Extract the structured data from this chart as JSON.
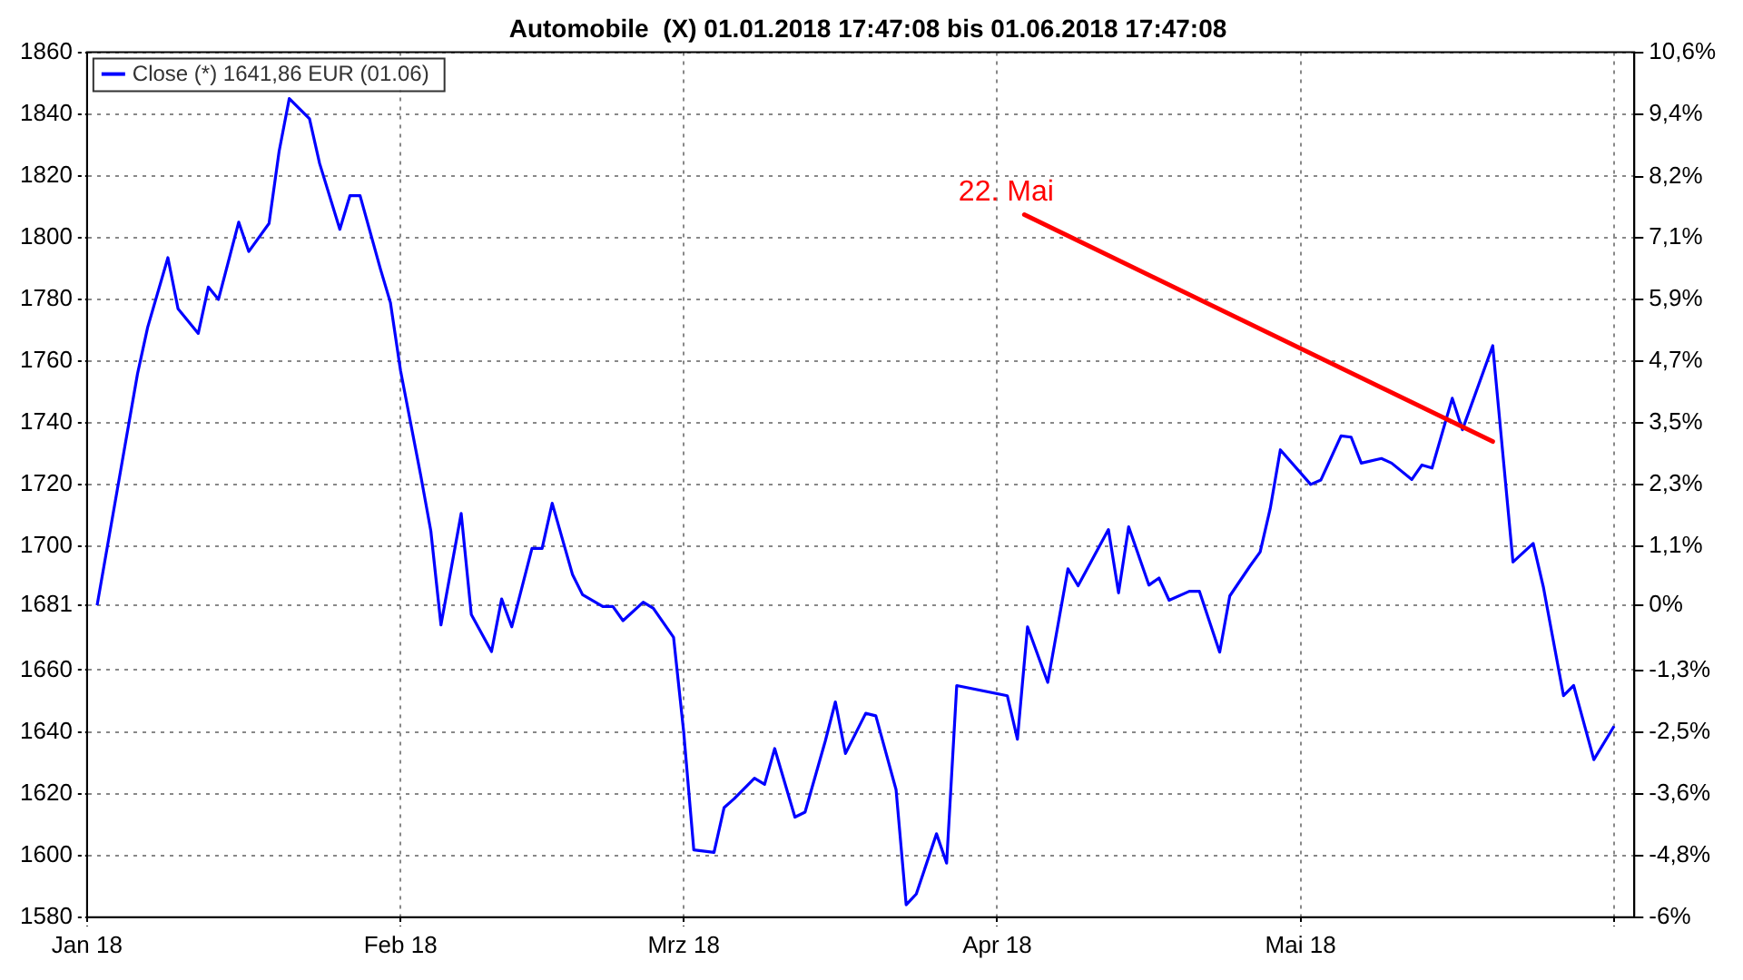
{
  "chart_data": {
    "type": "line",
    "title": "Automobile  (X) 01.01.2018 17:47:08 bis 01.06.2018 17:47:08",
    "x": [
      "2018-01-02",
      "2018-01-06",
      "2018-01-07",
      "2018-01-09",
      "2018-01-10",
      "2018-01-12",
      "2018-01-13",
      "2018-01-14",
      "2018-01-16",
      "2018-01-17",
      "2018-01-19",
      "2018-01-20",
      "2018-01-21",
      "2018-01-23",
      "2018-01-24",
      "2018-01-26",
      "2018-01-27",
      "2018-01-28",
      "2018-01-30",
      "2018-01-31",
      "2018-02-01",
      "2018-02-03",
      "2018-02-04",
      "2018-02-05",
      "2018-02-07",
      "2018-02-08",
      "2018-02-10",
      "2018-02-11",
      "2018-02-12",
      "2018-02-14",
      "2018-02-15",
      "2018-02-16",
      "2018-02-18",
      "2018-02-19",
      "2018-02-21",
      "2018-02-22",
      "2018-02-23",
      "2018-02-25",
      "2018-02-26",
      "2018-02-28",
      "2018-03-01",
      "2018-03-02",
      "2018-03-04",
      "2018-03-05",
      "2018-03-06",
      "2018-03-08",
      "2018-03-09",
      "2018-03-10",
      "2018-03-12",
      "2018-03-13",
      "2018-03-15",
      "2018-03-16",
      "2018-03-17",
      "2018-03-19",
      "2018-03-20",
      "2018-03-22",
      "2018-03-23",
      "2018-03-24",
      "2018-03-26",
      "2018-03-27",
      "2018-03-28",
      "2018-04-02",
      "2018-04-03",
      "2018-04-04",
      "2018-04-06",
      "2018-04-08",
      "2018-04-09",
      "2018-04-12",
      "2018-04-13",
      "2018-04-14",
      "2018-04-16",
      "2018-04-17",
      "2018-04-18",
      "2018-04-20",
      "2018-04-21",
      "2018-04-23",
      "2018-04-24",
      "2018-04-26",
      "2018-04-27",
      "2018-04-28",
      "2018-04-29",
      "2018-05-02",
      "2018-05-03",
      "2018-05-05",
      "2018-05-06",
      "2018-05-07",
      "2018-05-09",
      "2018-05-10",
      "2018-05-12",
      "2018-05-13",
      "2018-05-14",
      "2018-05-16",
      "2018-05-17",
      "2018-05-20",
      "2018-05-22",
      "2018-05-24",
      "2018-05-25",
      "2018-05-27",
      "2018-05-28",
      "2018-05-30",
      "2018-06-01"
    ],
    "series": [
      {
        "name": "Close (*) 1641,86 EUR (01.06)",
        "color": "#0000ff",
        "values": [
          1681,
          1756,
          1771,
          1793.5,
          1777,
          1769,
          1784,
          1780,
          1805,
          1795.5,
          1804.6,
          1828,
          1845,
          1838.5,
          1824,
          1802.7,
          1813.6,
          1813.6,
          1790,
          1779,
          1757,
          1723,
          1705,
          1674.6,
          1710.7,
          1678,
          1666,
          1683,
          1674,
          1699.4,
          1699.4,
          1714,
          1691,
          1684.4,
          1680.6,
          1680.6,
          1676,
          1682,
          1680,
          1670.6,
          1640,
          1601.8,
          1601,
          1615.5,
          1618.4,
          1625,
          1623,
          1634.6,
          1612.4,
          1614,
          1637,
          1649.7,
          1633,
          1646,
          1645.2,
          1621.3,
          1584,
          1587.5,
          1607,
          1597.5,
          1655,
          1651.7,
          1637.6,
          1674,
          1656,
          1692.8,
          1687.3,
          1705.5,
          1685,
          1706.4,
          1687.5,
          1689.8,
          1682.6,
          1685.5,
          1685.5,
          1665.8,
          1684,
          1693.7,
          1698.2,
          1712.3,
          1731.3,
          1720.1,
          1721.5,
          1735.8,
          1735.4,
          1727,
          1728.5,
          1727,
          1721.7,
          1726.4,
          1725.4,
          1748,
          1737.8,
          1765,
          1695,
          1701,
          1687,
          1651.7,
          1655,
          1631,
          1641.86
        ]
      }
    ],
    "xlim": [
      "2018-01-01",
      "2018-06-03"
    ],
    "xticks": [
      {
        "value": "2018-01-01",
        "label": "Jan 18"
      },
      {
        "value": "2018-02-01",
        "label": "Feb 18"
      },
      {
        "value": "2018-03-01",
        "label": "Mrz 18"
      },
      {
        "value": "2018-04-01",
        "label": "Apr 18"
      },
      {
        "value": "2018-05-01",
        "label": "Mai 18"
      },
      {
        "value": "2018-06-01",
        "label": null
      }
    ],
    "ylim": [
      1580,
      1860
    ],
    "yticks": [
      1580,
      1600,
      1620,
      1640,
      1660,
      1681,
      1700,
      1720,
      1740,
      1760,
      1780,
      1800,
      1820,
      1840,
      1860
    ],
    "y2lim": [
      -6.008,
      10.648
    ],
    "y2ticks": [
      {
        "value": -6.008,
        "label": "-6%"
      },
      {
        "value": -4.819,
        "label": "-4,8%"
      },
      {
        "value": -3.629,
        "label": "-3,6%"
      },
      {
        "value": -2.45,
        "label": "-2,5%"
      },
      {
        "value": -1.25,
        "label": "-1,3%"
      },
      {
        "value": 0,
        "label": "0%"
      },
      {
        "value": 1.13,
        "label": "1,1%"
      },
      {
        "value": 2.32,
        "label": "2,3%"
      },
      {
        "value": 3.51,
        "label": "3,5%"
      },
      {
        "value": 4.7,
        "label": "4,7%"
      },
      {
        "value": 5.889,
        "label": "5,9%"
      },
      {
        "value": 7.079,
        "label": "7,1%"
      },
      {
        "value": 8.249,
        "label": "8,2%"
      },
      {
        "value": 9.449,
        "label": "9,4%"
      },
      {
        "value": 10.648,
        "label": "10,6%"
      }
    ],
    "annotations": [
      {
        "text": "22. Mai",
        "x": "2018-05-20",
        "y": 1734
      }
    ],
    "grid": true,
    "legend": "top left",
    "marker": "none"
  }
}
